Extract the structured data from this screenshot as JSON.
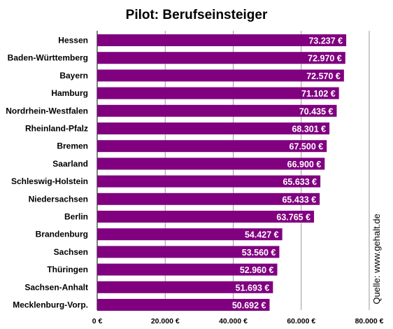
{
  "chart_data": {
    "type": "bar",
    "orientation": "horizontal",
    "title": "Pilot: Berufseinsteiger",
    "categories": [
      "Hessen",
      "Baden-Württemberg",
      "Bayern",
      "Hamburg",
      "Nordrhein-Westfalen",
      "Rheinland-Pfalz",
      "Bremen",
      "Saarland",
      "Schleswig-Holstein",
      "Niedersachsen",
      "Berlin",
      "Brandenburg",
      "Sachsen",
      "Thüringen",
      "Sachsen-Anhalt",
      "Mecklenburg-Vorp."
    ],
    "values": [
      73237,
      72970,
      72570,
      71102,
      70435,
      68301,
      67500,
      66900,
      65633,
      65433,
      63765,
      54427,
      53560,
      52960,
      51693,
      50692
    ],
    "value_labels": [
      "73.237 €",
      "72.970 €",
      "72.570 €",
      "71.102 €",
      "70.435 €",
      "68.301 €",
      "67.500 €",
      "66.900 €",
      "65.633 €",
      "65.433 €",
      "63.765 €",
      "54.427 €",
      "53.560 €",
      "52.960 €",
      "51.693 €",
      "50.692 €"
    ],
    "x_ticks": [
      0,
      20000,
      40000,
      60000,
      80000
    ],
    "x_tick_labels": [
      "0 €",
      "20.000 €",
      "40.000 €",
      "60.000 €",
      "80.000 €"
    ],
    "xlim": [
      0,
      80000
    ],
    "xlabel": "",
    "ylabel": "",
    "grid": "vertical",
    "source_note": "Quelle: www.gehalt.de",
    "colors": {
      "bar": "#800080",
      "grid": "#999999",
      "text": "#000000",
      "value_text": "#ffffff"
    }
  }
}
